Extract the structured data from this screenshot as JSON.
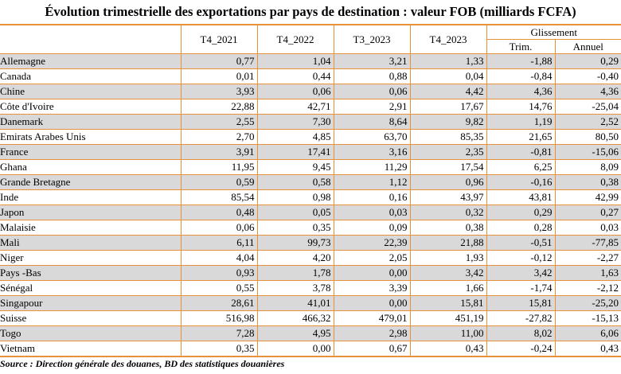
{
  "title": "Évolution trimestrielle des exportations par pays de destination : valeur FOB (milliards FCFA)",
  "headers": {
    "periods": [
      "T4_2021",
      "T4_2022",
      "T3_2023",
      "T4_2023"
    ],
    "glissement": "Glissement",
    "trim": "Trim.",
    "annuel": "Annuel"
  },
  "rows": [
    {
      "country": "Allemagne",
      "values": [
        "0,77",
        "1,04",
        "3,21",
        "1,33",
        "-1,88",
        "0,29"
      ]
    },
    {
      "country": "Canada",
      "values": [
        "0,01",
        "0,44",
        "0,88",
        "0,04",
        "-0,84",
        "-0,40"
      ]
    },
    {
      "country": "Chine",
      "values": [
        "3,93",
        "0,06",
        "0,06",
        "4,42",
        "4,36",
        "4,36"
      ]
    },
    {
      "country": "Côte d'Ivoire",
      "values": [
        "22,88",
        "42,71",
        "2,91",
        "17,67",
        "14,76",
        "-25,04"
      ]
    },
    {
      "country": "Danemark",
      "values": [
        "2,55",
        "7,30",
        "8,64",
        "9,82",
        "1,19",
        "2,52"
      ]
    },
    {
      "country": "Emirats Arabes Unis",
      "values": [
        "2,70",
        "4,85",
        "63,70",
        "85,35",
        "21,65",
        "80,50"
      ]
    },
    {
      "country": "France",
      "values": [
        "3,91",
        "17,41",
        "3,16",
        "2,35",
        "-0,81",
        "-15,06"
      ]
    },
    {
      "country": "Ghana",
      "values": [
        "11,95",
        "9,45",
        "11,29",
        "17,54",
        "6,25",
        "8,09"
      ]
    },
    {
      "country": "Grande Bretagne",
      "values": [
        "0,59",
        "0,58",
        "1,12",
        "0,96",
        "-0,16",
        "0,38"
      ]
    },
    {
      "country": "Inde",
      "values": [
        "85,54",
        "0,98",
        "0,16",
        "43,97",
        "43,81",
        "42,99"
      ]
    },
    {
      "country": "Japon",
      "values": [
        "0,48",
        "0,05",
        "0,03",
        "0,32",
        "0,29",
        "0,27"
      ]
    },
    {
      "country": "Malaisie",
      "values": [
        "0,06",
        "0,35",
        "0,09",
        "0,38",
        "0,28",
        "0,03"
      ]
    },
    {
      "country": "Mali",
      "values": [
        "6,11",
        "99,73",
        "22,39",
        "21,88",
        "-0,51",
        "-77,85"
      ]
    },
    {
      "country": "Niger",
      "values": [
        "4,04",
        "4,20",
        "2,05",
        "1,93",
        "-0,12",
        "-2,27"
      ]
    },
    {
      "country": "Pays -Bas",
      "values": [
        "0,93",
        "1,78",
        "0,00",
        "3,42",
        "3,42",
        "1,63"
      ]
    },
    {
      "country": "Sénégal",
      "values": [
        "0,55",
        "3,78",
        "3,39",
        "1,66",
        "-1,74",
        "-2,12"
      ]
    },
    {
      "country": "Singapour",
      "values": [
        "28,61",
        "41,01",
        "0,00",
        "15,81",
        "15,81",
        "-25,20"
      ]
    },
    {
      "country": "Suisse",
      "values": [
        "516,98",
        "466,32",
        "479,01",
        "451,19",
        "-27,82",
        "-15,13"
      ]
    },
    {
      "country": "Togo",
      "values": [
        "7,28",
        "4,95",
        "2,98",
        "11,00",
        "8,02",
        "6,06"
      ]
    },
    {
      "country": "Vietnam",
      "values": [
        "0,35",
        "0,00",
        "0,67",
        "0,43",
        "-0,24",
        "0,43"
      ]
    }
  ],
  "source": "Source : Direction générale des douanes, BD des statistiques douanières",
  "colors": {
    "border": "#e8913b",
    "shade": "#d9d9d9"
  }
}
